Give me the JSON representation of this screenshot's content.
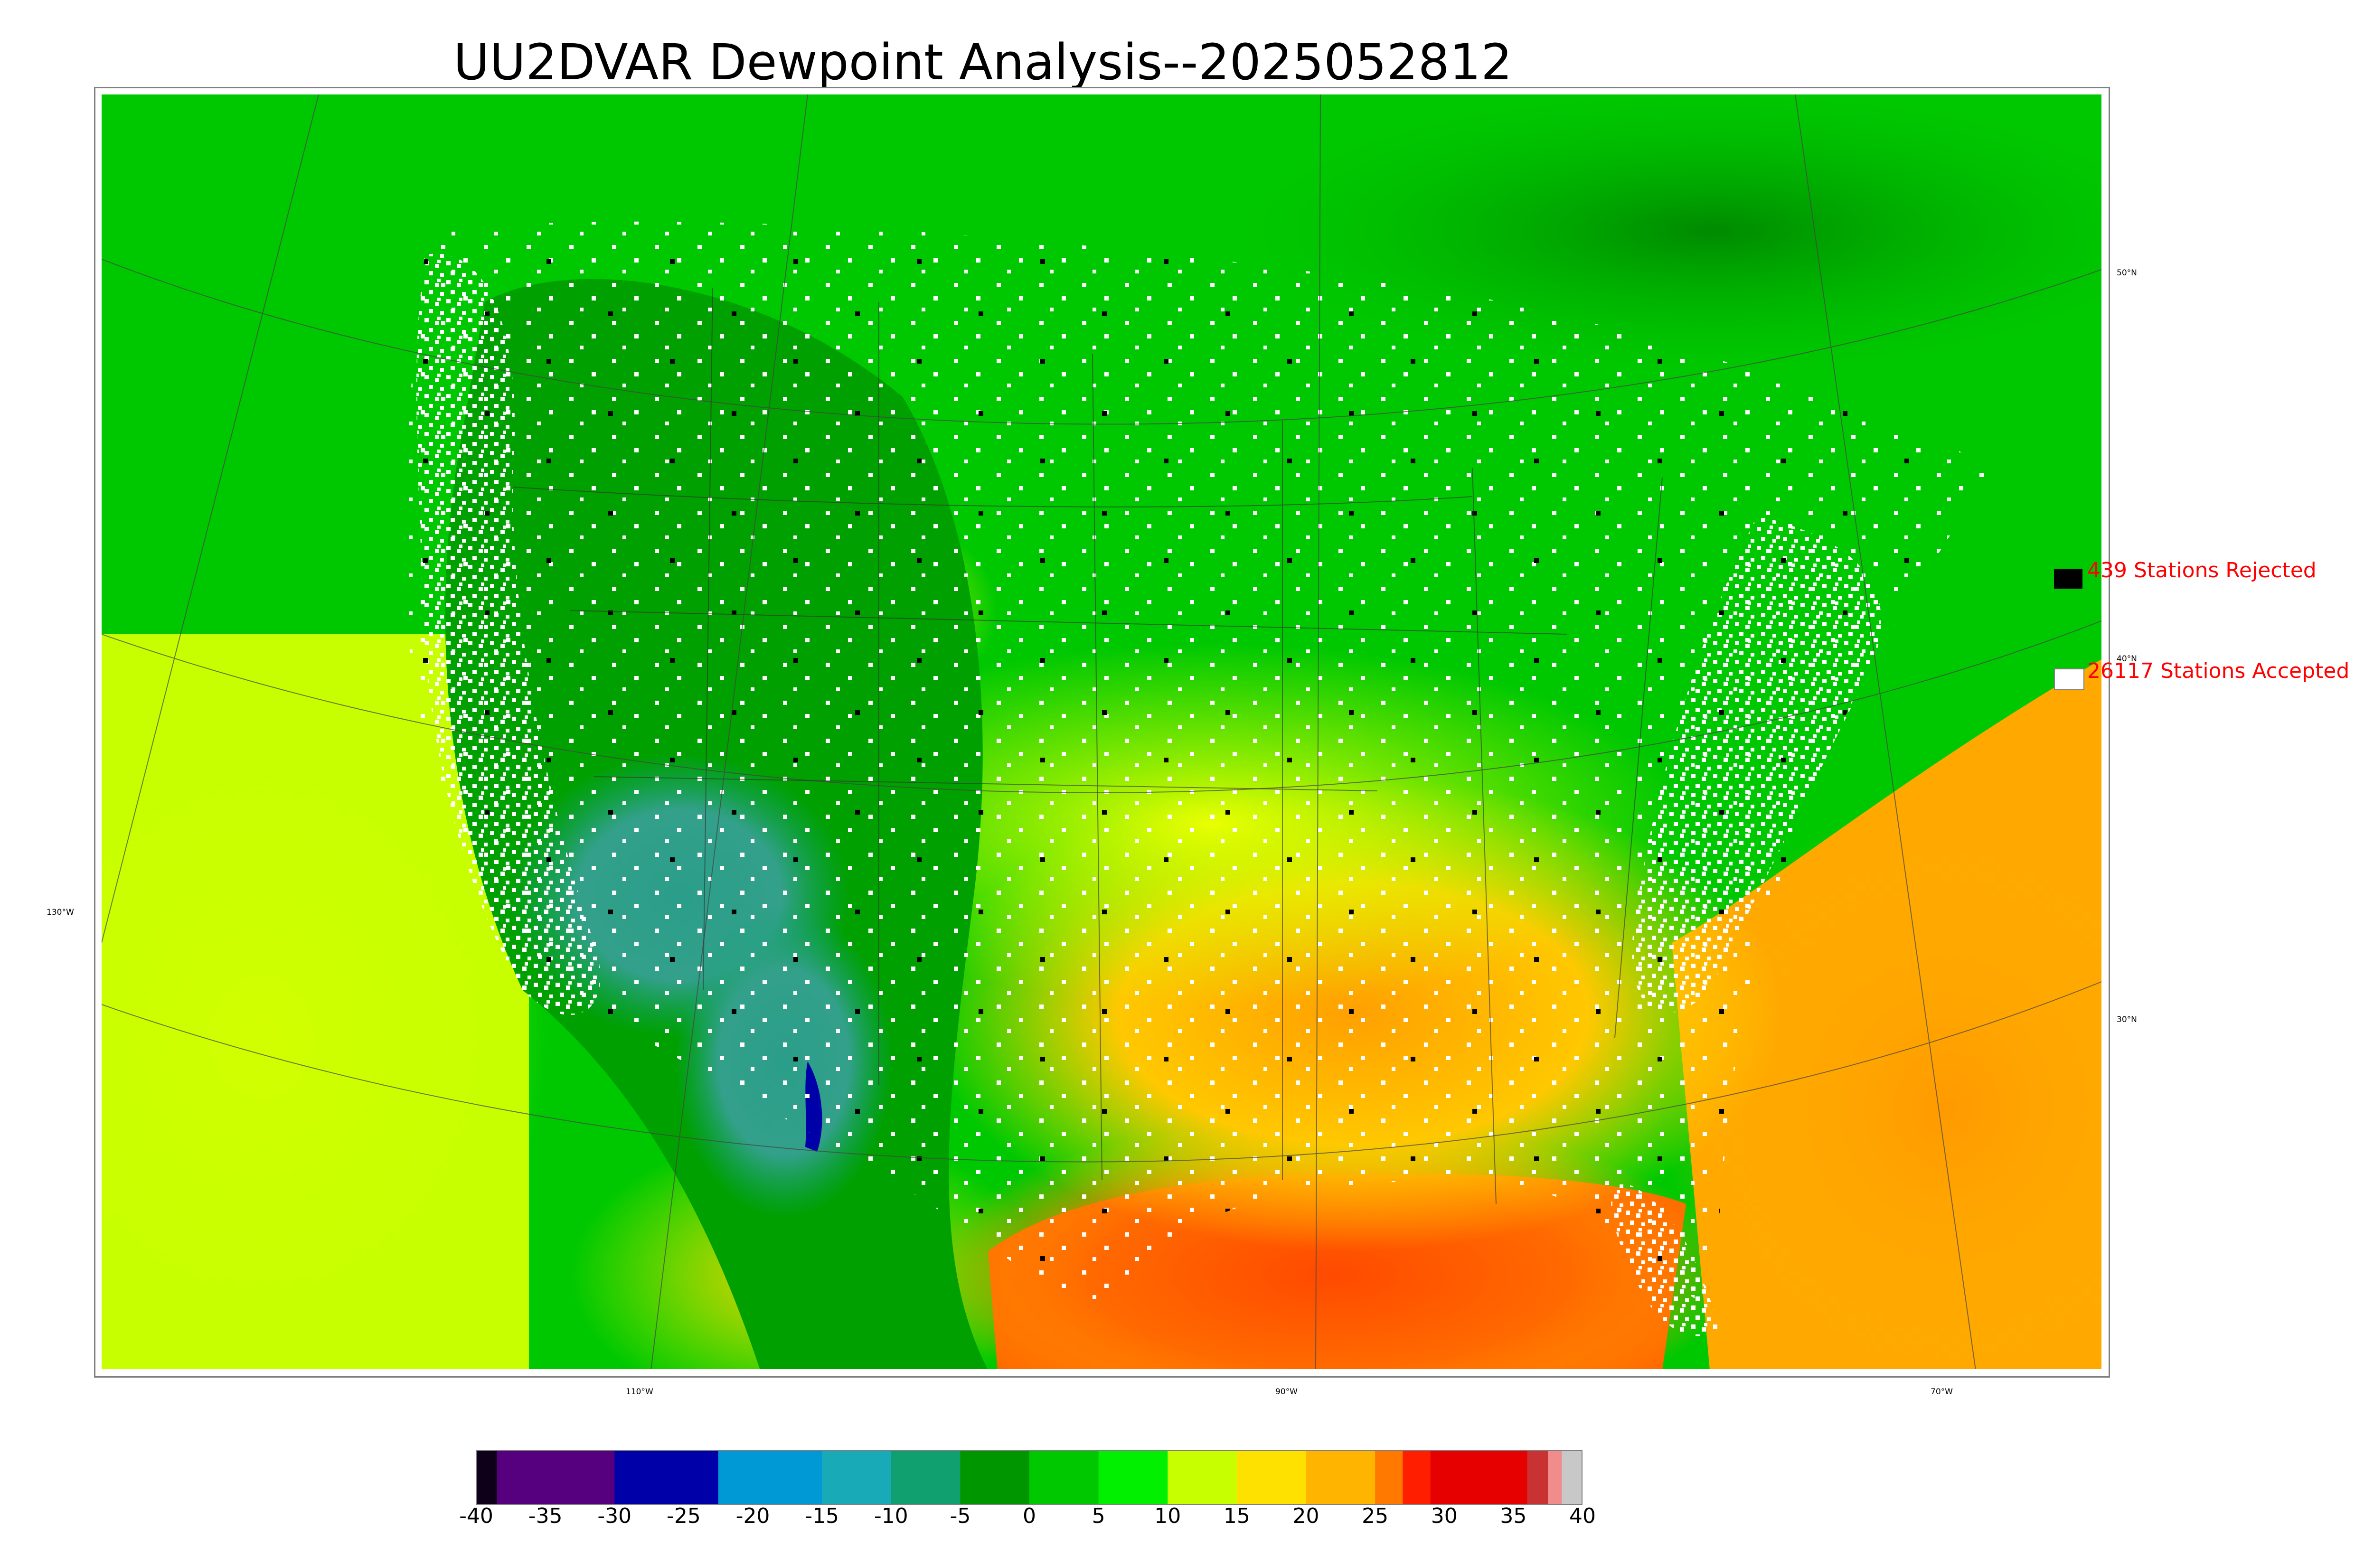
{
  "title": "UU2DVAR Dewpoint Analysis--2025052812",
  "map": {
    "meridian_labels": [
      "130°W",
      "110°W",
      "90°W",
      "70°W"
    ],
    "parallel_labels": [
      "50°N",
      "40°N",
      "30°N"
    ]
  },
  "legend": {
    "rejected": {
      "label": "439 Stations Rejected",
      "color": "#000000"
    },
    "accepted": {
      "label": "26117 Stations Accepted",
      "color": "#ffffff"
    }
  },
  "colorbar": {
    "min": -40,
    "max": 40,
    "ticks": [
      "-40",
      "-35",
      "-30",
      "-25",
      "-20",
      "-15",
      "-10",
      "-5",
      "0",
      "5",
      "10",
      "15",
      "20",
      "25",
      "30",
      "35",
      "40"
    ],
    "segments": [
      {
        "from": -40,
        "to": -38.5,
        "color": "#0d0018"
      },
      {
        "from": -38.5,
        "to": -30,
        "color": "#56007f"
      },
      {
        "from": -30,
        "to": -22.5,
        "color": "#0000a8"
      },
      {
        "from": -22.5,
        "to": -15,
        "color": "#0099d6"
      },
      {
        "from": -15,
        "to": -10,
        "color": "#19aab8"
      },
      {
        "from": -10,
        "to": -5,
        "color": "#10a070"
      },
      {
        "from": -5,
        "to": 0,
        "color": "#009600"
      },
      {
        "from": 0,
        "to": 5,
        "color": "#00c800"
      },
      {
        "from": 5,
        "to": 10,
        "color": "#00f000"
      },
      {
        "from": 10,
        "to": 15,
        "color": "#c8ff00"
      },
      {
        "from": 15,
        "to": 20,
        "color": "#ffe100"
      },
      {
        "from": 20,
        "to": 25,
        "color": "#ffb400"
      },
      {
        "from": 25,
        "to": 27,
        "color": "#ff7800"
      },
      {
        "from": 27,
        "to": 29,
        "color": "#ff1e00"
      },
      {
        "from": 29,
        "to": 36,
        "color": "#e60000"
      },
      {
        "from": 36,
        "to": 37.5,
        "color": "#c83232"
      },
      {
        "from": 37.5,
        "to": 38.5,
        "color": "#f08c8c"
      },
      {
        "from": 38.5,
        "to": 40,
        "color": "#c8c8c8"
      }
    ]
  }
}
